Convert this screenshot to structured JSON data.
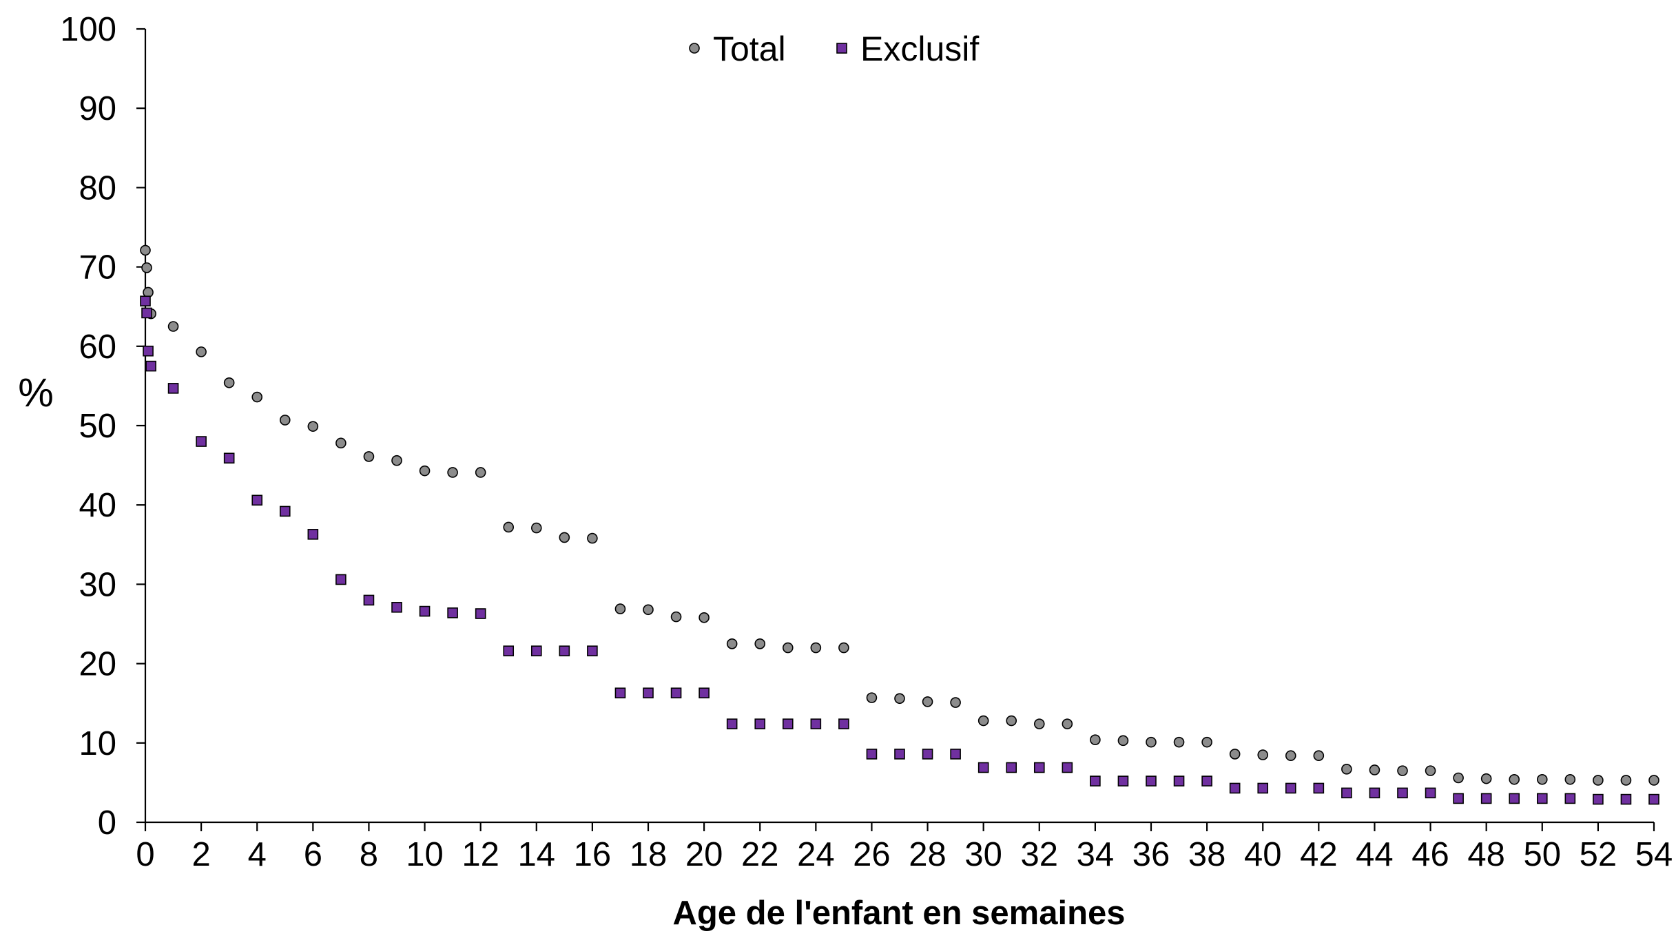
{
  "chart_data": {
    "type": "scatter",
    "title": "",
    "xlabel": "Age de l'enfant en semaines",
    "ylabel": "%",
    "xlim": [
      0,
      54
    ],
    "ylim": [
      0,
      100
    ],
    "xticks": [
      0,
      2,
      4,
      6,
      8,
      10,
      12,
      14,
      16,
      18,
      20,
      22,
      24,
      26,
      28,
      30,
      32,
      34,
      36,
      38,
      40,
      42,
      44,
      46,
      48,
      50,
      52,
      54
    ],
    "yticks": [
      0,
      10,
      20,
      30,
      40,
      50,
      60,
      70,
      80,
      90,
      100
    ],
    "grid": false,
    "legend_position": "top-center",
    "series": [
      {
        "name": "Total",
        "marker": "circle",
        "color": "#8c8c8c",
        "x": [
          0,
          0.05,
          0.1,
          0.2,
          1,
          2,
          3,
          4,
          5,
          6,
          7,
          8,
          9,
          10,
          11,
          12,
          13,
          14,
          15,
          16,
          17,
          18,
          19,
          20,
          21,
          22,
          23,
          24,
          25,
          26,
          27,
          28,
          29,
          30,
          31,
          32,
          33,
          34,
          35,
          36,
          37,
          38,
          39,
          40,
          41,
          42,
          43,
          44,
          45,
          46,
          47,
          48,
          49,
          50,
          51,
          52,
          53,
          54
        ],
        "y": [
          72.1,
          69.9,
          66.8,
          64.1,
          62.5,
          59.3,
          55.4,
          53.6,
          50.7,
          49.9,
          47.8,
          46.1,
          45.6,
          44.3,
          44.1,
          44.1,
          37.2,
          37.1,
          35.9,
          35.8,
          26.9,
          26.8,
          25.9,
          25.8,
          22.5,
          22.5,
          22.0,
          22.0,
          22.0,
          15.7,
          15.6,
          15.2,
          15.1,
          12.8,
          12.8,
          12.4,
          12.4,
          10.4,
          10.3,
          10.1,
          10.1,
          10.1,
          8.6,
          8.5,
          8.4,
          8.4,
          6.7,
          6.6,
          6.5,
          6.5,
          5.6,
          5.5,
          5.4,
          5.4,
          5.4,
          5.3,
          5.3,
          5.3
        ]
      },
      {
        "name": "Exclusif",
        "marker": "square",
        "color": "#7030a0",
        "x": [
          0,
          0.05,
          0.1,
          0.2,
          1,
          2,
          3,
          4,
          5,
          6,
          7,
          8,
          9,
          10,
          11,
          12,
          13,
          14,
          15,
          16,
          17,
          18,
          19,
          20,
          21,
          22,
          23,
          24,
          25,
          26,
          27,
          28,
          29,
          30,
          31,
          32,
          33,
          34,
          35,
          36,
          37,
          38,
          39,
          40,
          41,
          42,
          43,
          44,
          45,
          46,
          47,
          48,
          49,
          50,
          51,
          52,
          53,
          54
        ],
        "y": [
          65.7,
          64.2,
          59.4,
          57.5,
          54.7,
          48.0,
          45.9,
          40.6,
          39.2,
          36.3,
          30.6,
          28.0,
          27.1,
          26.6,
          26.4,
          26.3,
          21.6,
          21.6,
          21.6,
          21.6,
          16.3,
          16.3,
          16.3,
          16.3,
          12.4,
          12.4,
          12.4,
          12.4,
          12.4,
          8.6,
          8.6,
          8.6,
          8.6,
          6.9,
          6.9,
          6.9,
          6.9,
          5.2,
          5.2,
          5.2,
          5.2,
          5.2,
          4.3,
          4.3,
          4.3,
          4.3,
          3.7,
          3.7,
          3.7,
          3.7,
          3.0,
          3.0,
          3.0,
          3.0,
          3.0,
          2.9,
          2.9,
          2.9
        ]
      }
    ]
  }
}
